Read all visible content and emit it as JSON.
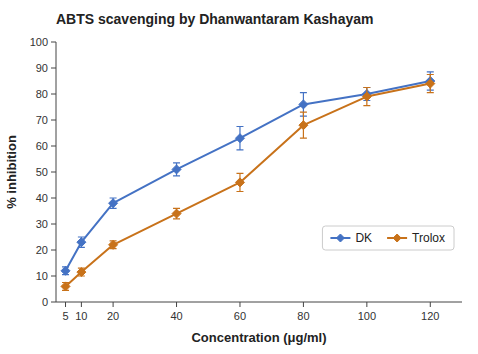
{
  "chart_data": {
    "type": "line",
    "title": "ABTS scavenging by Dhanwantaram Kashayam",
    "x_label": "Concentration (μg/ml)",
    "y_label": "% inhibition",
    "x": [
      5,
      10,
      20,
      40,
      60,
      80,
      100,
      120
    ],
    "series": [
      {
        "name": "DK",
        "color": "#4472c4",
        "marker": "diamond",
        "values": [
          12,
          23,
          38,
          51,
          63,
          76,
          80,
          85
        ],
        "errors": [
          1.5,
          2.0,
          2.0,
          2.5,
          4.5,
          4.5,
          2.5,
          3.5
        ]
      },
      {
        "name": "Trolox",
        "color": "#c8721a",
        "marker": "diamond",
        "values": [
          6,
          11.5,
          22,
          34,
          46,
          68,
          79,
          84
        ],
        "errors": [
          1.5,
          1.5,
          1.5,
          2.0,
          3.5,
          5.0,
          3.5,
          3.5
        ]
      }
    ],
    "xlim": [
      2,
      130
    ],
    "ylim": [
      0,
      100
    ],
    "xticks": [
      5,
      10,
      20,
      40,
      60,
      80,
      100,
      120
    ],
    "yticks": [
      0,
      10,
      20,
      30,
      40,
      50,
      60,
      70,
      80,
      90,
      100
    ],
    "legend": "lower right",
    "grid": false
  }
}
